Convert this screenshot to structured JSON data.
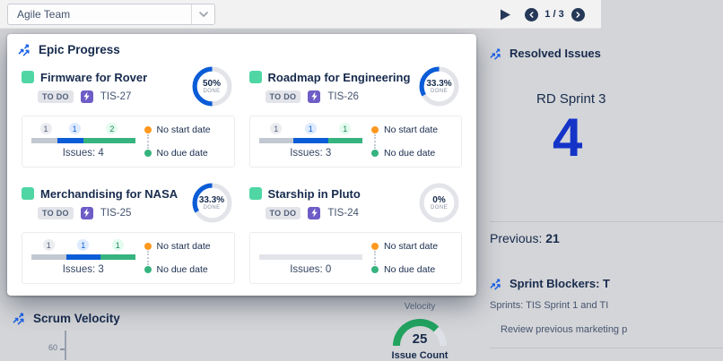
{
  "topbar": {
    "board_selector": "Agile Team",
    "page_indicator": "1 / 3"
  },
  "icons": {
    "gadget_header": "trend-arrows-icon (three blue arrows flying up-right)",
    "epic_type": "purple lightning-bolt epic icon",
    "board_selector": "chevron-down",
    "playback": "play-triangle",
    "pager": "chevron-left-circle / chevron-right-circle"
  },
  "colors": {
    "accent_blue": "#0B5CD7",
    "big_number_blue": "#1434C8",
    "green": "#36B37E",
    "epic_green": "#4FD6A4",
    "orange": "#FF991F",
    "gauge_green": "#22A35F",
    "navy_text": "#172B4D",
    "dim_background": "#d4d5d8"
  },
  "epic_panel": {
    "title": "Epic Progress",
    "cards": [
      {
        "name": "Firmware for Rover",
        "status": "TO DO",
        "key": "TIS-27",
        "percent": "50%",
        "percent_value": 50,
        "done_label": "DONE",
        "issues_label": "Issues: 4",
        "segments": [
          {
            "count": "1",
            "color": "gray",
            "fraction": 25
          },
          {
            "count": "1",
            "color": "blue",
            "fraction": 25
          },
          {
            "count": "2",
            "color": "green",
            "fraction": 50
          }
        ],
        "legend": [
          {
            "label": "No start date",
            "color": "orange"
          },
          {
            "label": "No due date",
            "color": "green"
          }
        ]
      },
      {
        "name": "Roadmap for Engineering",
        "status": "TO DO",
        "key": "TIS-26",
        "percent": "33.3%",
        "percent_value": 33.3,
        "done_label": "DONE",
        "issues_label": "Issues: 3",
        "segments": [
          {
            "count": "1",
            "color": "gray",
            "fraction": 33.3
          },
          {
            "count": "1",
            "color": "blue",
            "fraction": 33.3
          },
          {
            "count": "1",
            "color": "green",
            "fraction": 33.3
          }
        ],
        "legend": [
          {
            "label": "No start date",
            "color": "orange"
          },
          {
            "label": "No due date",
            "color": "green"
          }
        ]
      },
      {
        "name": "Merchandising for NASA",
        "status": "TO DO",
        "key": "TIS-25",
        "percent": "33.3%",
        "percent_value": 33.3,
        "done_label": "DONE",
        "issues_label": "Issues: 3",
        "segments": [
          {
            "count": "1",
            "color": "gray",
            "fraction": 33.3
          },
          {
            "count": "1",
            "color": "blue",
            "fraction": 33.3
          },
          {
            "count": "1",
            "color": "green",
            "fraction": 33.3
          }
        ],
        "legend": [
          {
            "label": "No start date",
            "color": "orange"
          },
          {
            "label": "No due date",
            "color": "green"
          }
        ]
      },
      {
        "name": "Starship in Pluto",
        "status": "TO DO",
        "key": "TIS-24",
        "percent": "0%",
        "percent_value": 0,
        "done_label": "DONE",
        "issues_label": "Issues: 0",
        "segments": [],
        "legend": [
          {
            "label": "No start date",
            "color": "orange"
          },
          {
            "label": "No due date",
            "color": "green"
          }
        ]
      }
    ]
  },
  "resolved_panel": {
    "title": "Resolved Issues",
    "sprint_label": "RD Sprint 3",
    "value": "4",
    "previous_label": "Previous:",
    "previous_value": "21"
  },
  "blockers_panel": {
    "title": "Sprint Blockers: T",
    "subtitle": "Sprints: TIS Sprint 1 and TI",
    "item": "Review previous marketing p"
  },
  "velocity_panel": {
    "title": "Scrum Velocity",
    "y_tick": "60",
    "gauge_label": "Velocity",
    "gauge_value": "25",
    "gauge_unit": "Issue Count",
    "gauge_percent": 75
  }
}
